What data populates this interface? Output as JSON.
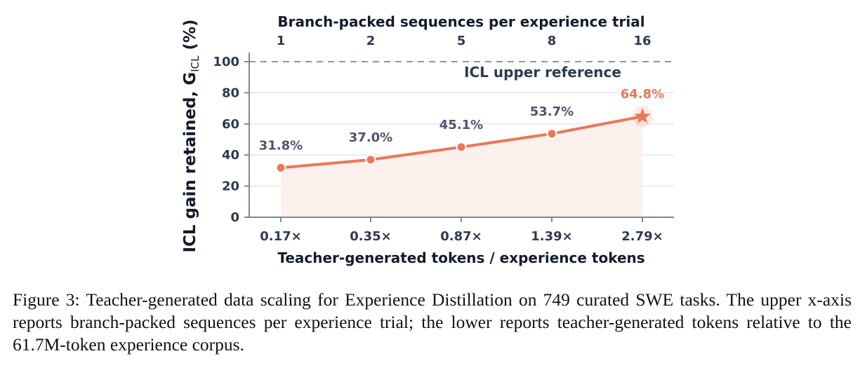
{
  "chart_data": {
    "type": "line",
    "top_axis": {
      "label": "Branch-packed sequences per experience trial",
      "tick_labels": [
        "1",
        "2",
        "5",
        "8",
        "16"
      ]
    },
    "bottom_axis": {
      "label": "Teacher-generated tokens / experience tokens",
      "tick_labels": [
        "0.17×",
        "0.35×",
        "0.87×",
        "1.39×",
        "2.79×"
      ]
    },
    "y_axis": {
      "label_main": "ICL gain retained, G",
      "label_sub": "ICL",
      "label_tail": " (%)",
      "ylim": [
        0,
        100
      ],
      "tick_values": [
        0,
        20,
        40,
        60,
        80,
        100
      ],
      "tick_labels": [
        "0",
        "20",
        "40",
        "60",
        "80",
        "100"
      ]
    },
    "series": [
      {
        "values": [
          31.8,
          37.0,
          45.1,
          53.7,
          64.8
        ],
        "data_labels": [
          "31.8%",
          "37.0%",
          "45.1%",
          "53.7%",
          "64.8%"
        ]
      }
    ],
    "reference_line": {
      "value": 100,
      "label": "ICL upper reference"
    },
    "grid": true,
    "colors": {
      "line": "#ee7658",
      "fill": "#fdeeea",
      "reference": "#8a96a8",
      "axis": "#7d8796",
      "grid": "#e4e7ee",
      "label_normal": "#4b566b",
      "label_highlight": "#ee7658"
    },
    "markers": [
      "circle",
      "circle",
      "circle",
      "circle",
      "star"
    ]
  },
  "caption": {
    "figure_label": "Figure 3:",
    "text": " Teacher-generated data scaling for Experience Distillation on 749 curated SWE tasks. The upper x-axis reports branch-packed sequences per experience trial; the lower reports teacher-generated tokens relative to the 61.7M-token experience corpus."
  }
}
